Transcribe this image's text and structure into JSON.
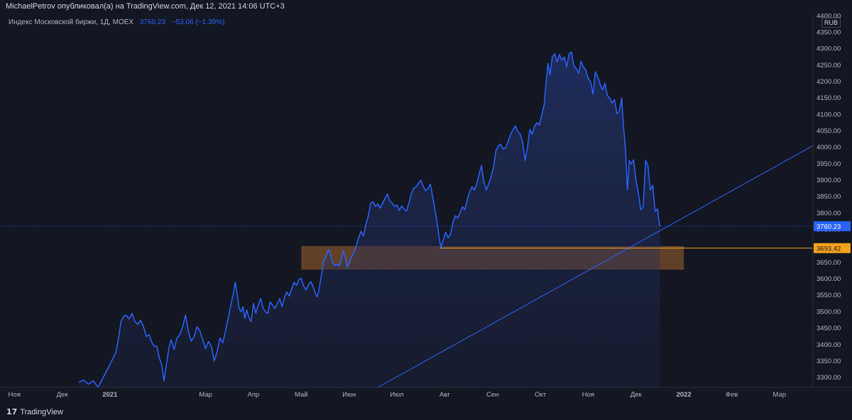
{
  "header": {
    "publisher_line": "MichaelPetrov опубликовал(а) на TradingView.com, Дек 12, 2021 14:06 UTC+3"
  },
  "legend": {
    "symbol": "Индекс Московской биржи, 1Д, MOEX",
    "last": "3760.23",
    "change": "−53.06 (−1.39%)"
  },
  "currency": "RUB",
  "footer": {
    "brand": "TradingView"
  },
  "colors": {
    "background": "#131722",
    "line": "#2962ff",
    "area_top": "#2a3a7a",
    "zone_fill": "#a0622a",
    "level_line": "#f7a21b",
    "trend_line": "#2962ff"
  },
  "chart_data": {
    "type": "area",
    "title": "Индекс Московской биржи, 1Д, MOEX",
    "x_ticks": [
      {
        "label": "Ноя",
        "t": 0
      },
      {
        "label": "Дек",
        "t": 1
      },
      {
        "label": "2021",
        "t": 2
      },
      {
        "label": "Мар",
        "t": 4
      },
      {
        "label": "Апр",
        "t": 5
      },
      {
        "label": "Май",
        "t": 6
      },
      {
        "label": "Июн",
        "t": 7
      },
      {
        "label": "Июл",
        "t": 8
      },
      {
        "label": "Авг",
        "t": 9
      },
      {
        "label": "Сен",
        "t": 10
      },
      {
        "label": "Окт",
        "t": 11
      },
      {
        "label": "Ноя",
        "t": 12
      },
      {
        "label": "Дек",
        "t": 13
      },
      {
        "label": "2022",
        "t": 14
      },
      {
        "label": "Фев",
        "t": 15
      },
      {
        "label": "Мар",
        "t": 16
      }
    ],
    "y_ticks": [
      3300,
      3350,
      3400,
      3450,
      3500,
      3550,
      3600,
      3650,
      3700,
      3750,
      3800,
      3850,
      3900,
      3950,
      4000,
      4050,
      4100,
      4150,
      4200,
      4250,
      4300,
      4350,
      4400
    ],
    "ylim": [
      3270,
      4405
    ],
    "xlim": [
      -0.3,
      16.7
    ],
    "price_series": [
      [
        1.35,
        3285
      ],
      [
        1.45,
        3292
      ],
      [
        1.55,
        3280
      ],
      [
        1.65,
        3290
      ],
      [
        1.75,
        3270
      ],
      [
        2.0,
        3340
      ],
      [
        2.05,
        3355
      ],
      [
        2.12,
        3375
      ],
      [
        2.18,
        3420
      ],
      [
        2.23,
        3470
      ],
      [
        2.28,
        3485
      ],
      [
        2.33,
        3490
      ],
      [
        2.4,
        3478
      ],
      [
        2.46,
        3495
      ],
      [
        2.52,
        3470
      ],
      [
        2.58,
        3462
      ],
      [
        2.64,
        3474
      ],
      [
        2.7,
        3455
      ],
      [
        2.76,
        3425
      ],
      [
        2.82,
        3430
      ],
      [
        2.88,
        3405
      ],
      [
        2.93,
        3395
      ],
      [
        2.98,
        3395
      ],
      [
        3.03,
        3360
      ],
      [
        3.08,
        3340
      ],
      [
        3.13,
        3290
      ],
      [
        3.18,
        3340
      ],
      [
        3.23,
        3388
      ],
      [
        3.28,
        3415
      ],
      [
        3.34,
        3385
      ],
      [
        3.4,
        3420
      ],
      [
        3.46,
        3430
      ],
      [
        3.52,
        3455
      ],
      [
        3.58,
        3490
      ],
      [
        3.64,
        3440
      ],
      [
        3.7,
        3410
      ],
      [
        3.76,
        3425
      ],
      [
        3.82,
        3455
      ],
      [
        3.88,
        3442
      ],
      [
        3.94,
        3415
      ],
      [
        4.0,
        3388
      ],
      [
        4.06,
        3410
      ],
      [
        4.12,
        3395
      ],
      [
        4.18,
        3350
      ],
      [
        4.24,
        3378
      ],
      [
        4.3,
        3420
      ],
      [
        4.36,
        3405
      ],
      [
        4.42,
        3445
      ],
      [
        4.48,
        3485
      ],
      [
        4.54,
        3530
      ],
      [
        4.58,
        3555
      ],
      [
        4.62,
        3590
      ],
      [
        4.66,
        3552
      ],
      [
        4.7,
        3510
      ],
      [
        4.74,
        3500
      ],
      [
        4.78,
        3515
      ],
      [
        4.82,
        3480
      ],
      [
        4.86,
        3505
      ],
      [
        4.9,
        3485
      ],
      [
        4.95,
        3470
      ],
      [
        5.0,
        3525
      ],
      [
        5.05,
        3495
      ],
      [
        5.1,
        3520
      ],
      [
        5.15,
        3540
      ],
      [
        5.2,
        3512
      ],
      [
        5.25,
        3500
      ],
      [
        5.3,
        3495
      ],
      [
        5.35,
        3530
      ],
      [
        5.4,
        3520
      ],
      [
        5.45,
        3510
      ],
      [
        5.5,
        3525
      ],
      [
        5.55,
        3540
      ],
      [
        5.6,
        3515
      ],
      [
        5.65,
        3545
      ],
      [
        5.7,
        3560
      ],
      [
        5.75,
        3548
      ],
      [
        5.8,
        3570
      ],
      [
        5.85,
        3590
      ],
      [
        5.9,
        3580
      ],
      [
        5.95,
        3598
      ],
      [
        6.0,
        3602
      ],
      [
        6.05,
        3578
      ],
      [
        6.1,
        3566
      ],
      [
        6.15,
        3582
      ],
      [
        6.2,
        3592
      ],
      [
        6.25,
        3575
      ],
      [
        6.3,
        3555
      ],
      [
        6.33,
        3545
      ],
      [
        6.37,
        3565
      ],
      [
        6.42,
        3610
      ],
      [
        6.47,
        3655
      ],
      [
        6.52,
        3668
      ],
      [
        6.57,
        3690
      ],
      [
        6.61,
        3675
      ],
      [
        6.65,
        3650
      ],
      [
        6.7,
        3640
      ],
      [
        6.75,
        3645
      ],
      [
        6.8,
        3640
      ],
      [
        6.84,
        3660
      ],
      [
        6.88,
        3685
      ],
      [
        6.92,
        3665
      ],
      [
        6.96,
        3635
      ],
      [
        7.0,
        3648
      ],
      [
        7.05,
        3665
      ],
      [
        7.1,
        3680
      ],
      [
        7.15,
        3700
      ],
      [
        7.2,
        3725
      ],
      [
        7.25,
        3745
      ],
      [
        7.3,
        3730
      ],
      [
        7.35,
        3765
      ],
      [
        7.4,
        3790
      ],
      [
        7.45,
        3830
      ],
      [
        7.5,
        3835
      ],
      [
        7.55,
        3820
      ],
      [
        7.6,
        3828
      ],
      [
        7.65,
        3815
      ],
      [
        7.7,
        3830
      ],
      [
        7.75,
        3845
      ],
      [
        7.8,
        3858
      ],
      [
        7.85,
        3838
      ],
      [
        7.9,
        3830
      ],
      [
        7.95,
        3820
      ],
      [
        8.0,
        3825
      ],
      [
        8.05,
        3808
      ],
      [
        8.1,
        3822
      ],
      [
        8.15,
        3812
      ],
      [
        8.2,
        3806
      ],
      [
        8.25,
        3830
      ],
      [
        8.3,
        3858
      ],
      [
        8.35,
        3875
      ],
      [
        8.4,
        3880
      ],
      [
        8.45,
        3890
      ],
      [
        8.5,
        3900
      ],
      [
        8.55,
        3882
      ],
      [
        8.6,
        3868
      ],
      [
        8.65,
        3875
      ],
      [
        8.7,
        3888
      ],
      [
        8.76,
        3840
      ],
      [
        8.82,
        3790
      ],
      [
        8.88,
        3730
      ],
      [
        8.92,
        3695
      ],
      [
        8.97,
        3720
      ],
      [
        9.02,
        3742
      ],
      [
        9.07,
        3725
      ],
      [
        9.12,
        3735
      ],
      [
        9.17,
        3770
      ],
      [
        9.22,
        3792
      ],
      [
        9.27,
        3785
      ],
      [
        9.32,
        3800
      ],
      [
        9.37,
        3820
      ],
      [
        9.42,
        3810
      ],
      [
        9.47,
        3840
      ],
      [
        9.52,
        3865
      ],
      [
        9.57,
        3880
      ],
      [
        9.62,
        3870
      ],
      [
        9.67,
        3890
      ],
      [
        9.72,
        3920
      ],
      [
        9.77,
        3945
      ],
      [
        9.82,
        3895
      ],
      [
        9.87,
        3870
      ],
      [
        9.92,
        3890
      ],
      [
        9.97,
        3910
      ],
      [
        10.02,
        3940
      ],
      [
        10.07,
        3990
      ],
      [
        10.12,
        4005
      ],
      [
        10.17,
        4010
      ],
      [
        10.22,
        3995
      ],
      [
        10.28,
        4000
      ],
      [
        10.33,
        4020
      ],
      [
        10.38,
        4040
      ],
      [
        10.43,
        4055
      ],
      [
        10.48,
        4065
      ],
      [
        10.53,
        4048
      ],
      [
        10.58,
        4040
      ],
      [
        10.63,
        4015
      ],
      [
        10.68,
        3960
      ],
      [
        10.73,
        4000
      ],
      [
        10.78,
        4055
      ],
      [
        10.83,
        4040
      ],
      [
        10.88,
        4065
      ],
      [
        10.93,
        4075
      ],
      [
        10.98,
        4068
      ],
      [
        11.03,
        4100
      ],
      [
        11.08,
        4130
      ],
      [
        11.12,
        4200
      ],
      [
        11.16,
        4255
      ],
      [
        11.2,
        4220
      ],
      [
        11.25,
        4275
      ],
      [
        11.3,
        4285
      ],
      [
        11.35,
        4260
      ],
      [
        11.4,
        4282
      ],
      [
        11.45,
        4265
      ],
      [
        11.5,
        4275
      ],
      [
        11.55,
        4245
      ],
      [
        11.6,
        4285
      ],
      [
        11.65,
        4290
      ],
      [
        11.7,
        4250
      ],
      [
        11.75,
        4240
      ],
      [
        11.8,
        4225
      ],
      [
        11.85,
        4262
      ],
      [
        11.9,
        4245
      ],
      [
        11.95,
        4235
      ],
      [
        12.0,
        4210
      ],
      [
        12.05,
        4200
      ],
      [
        12.1,
        4162
      ],
      [
        12.15,
        4230
      ],
      [
        12.2,
        4215
      ],
      [
        12.25,
        4192
      ],
      [
        12.3,
        4175
      ],
      [
        12.35,
        4195
      ],
      [
        12.4,
        4158
      ],
      [
        12.45,
        4150
      ],
      [
        12.5,
        4135
      ],
      [
        12.55,
        4145
      ],
      [
        12.6,
        4102
      ],
      [
        12.65,
        4110
      ],
      [
        12.7,
        4150
      ],
      [
        12.74,
        4060
      ],
      [
        12.78,
        3995
      ],
      [
        12.82,
        3870
      ],
      [
        12.86,
        3960
      ],
      [
        12.9,
        3950
      ],
      [
        12.95,
        3962
      ],
      [
        13.0,
        3900
      ],
      [
        13.05,
        3860
      ],
      [
        13.1,
        3810
      ],
      [
        13.15,
        3820
      ],
      [
        13.2,
        3960
      ],
      [
        13.25,
        3945
      ],
      [
        13.3,
        3870
      ],
      [
        13.35,
        3885
      ],
      [
        13.4,
        3805
      ],
      [
        13.45,
        3813
      ],
      [
        13.48,
        3776
      ],
      [
        13.5,
        3760
      ]
    ],
    "zone": {
      "x_start": 6.0,
      "x_end": 14.0,
      "y_low": 3628,
      "y_high": 3700
    },
    "level": {
      "x_start": 8.9,
      "y": 3693.42,
      "label": "3693.42"
    },
    "trendline": {
      "x1": 7.6,
      "y1": 3270,
      "x2": 16.7,
      "y2": 4005
    },
    "last_value_label": "3760.23",
    "price_scale_mark": "3760.23"
  }
}
